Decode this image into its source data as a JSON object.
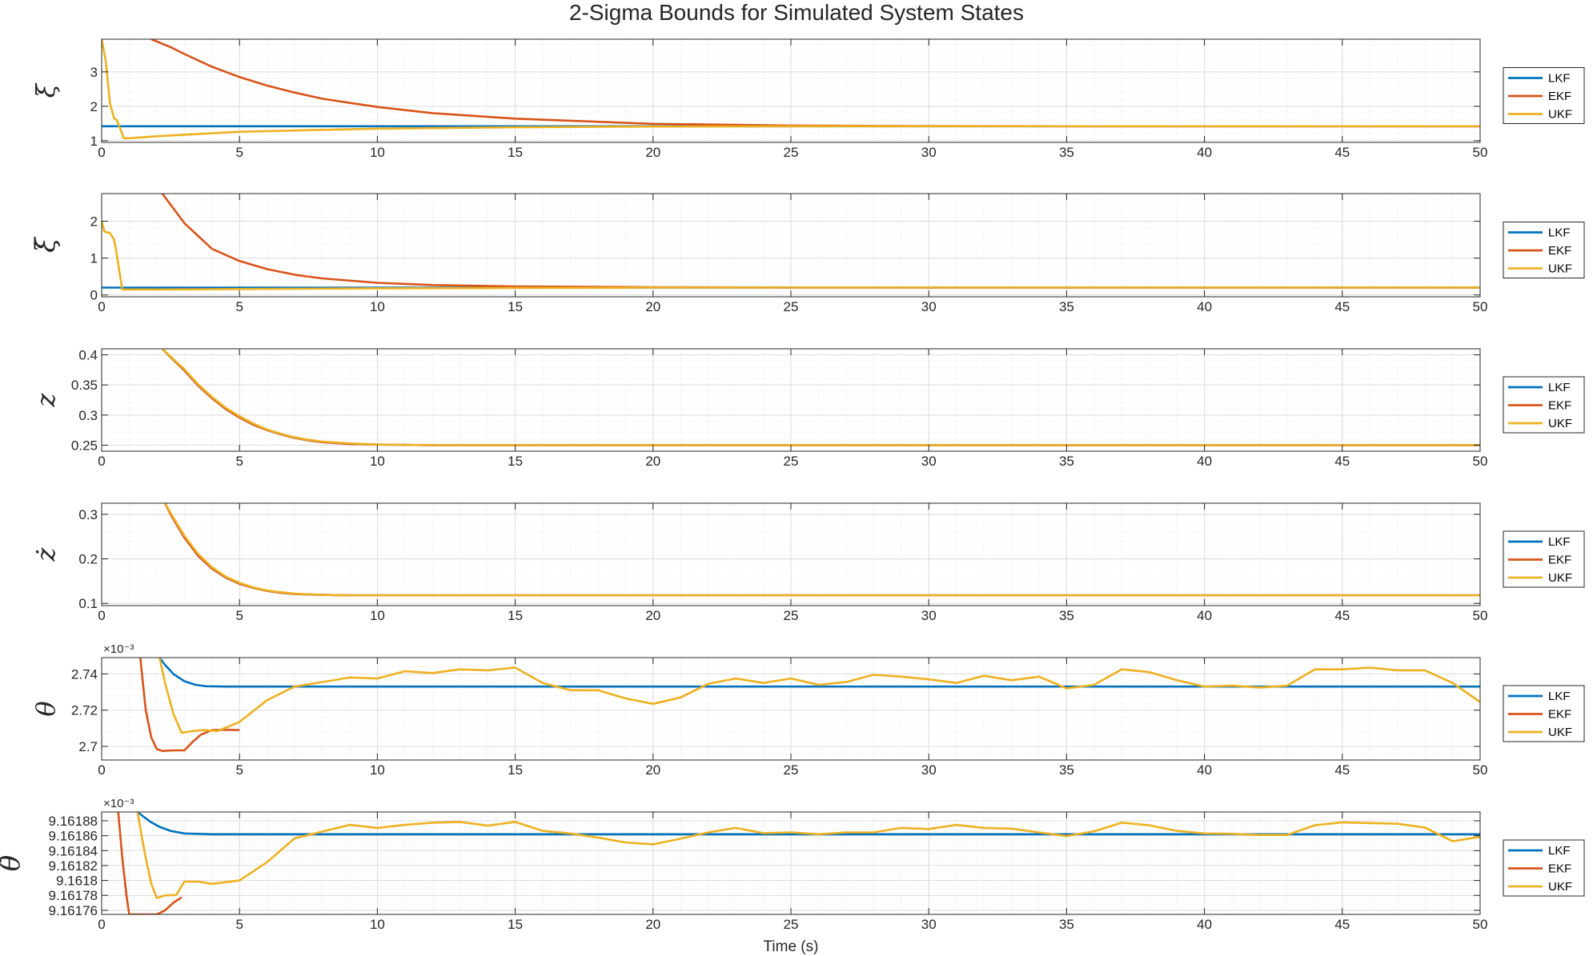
{
  "chart_data": {
    "type": "line",
    "title": "2-Sigma Bounds for Simulated System States",
    "xlabel": "Time (s)",
    "xlim": [
      0,
      50
    ],
    "xticks": [
      0,
      5,
      10,
      15,
      20,
      25,
      30,
      35,
      40,
      45,
      50
    ],
    "grid": true,
    "minor_grid": true,
    "legend": {
      "position": "right",
      "entries": [
        "LKF",
        "EKF",
        "UKF"
      ]
    },
    "colors": {
      "LKF": "#0072BD",
      "EKF": "#D95319",
      "UKF": "#EDB120"
    },
    "panels": [
      {
        "ylabel": "ξ",
        "ylim": [
          0.95,
          3.95
        ],
        "yticks": [
          1,
          2,
          3
        ],
        "ytick_labels": [
          "1",
          "2",
          "3"
        ],
        "exponent": "",
        "series": [
          {
            "name": "LKF",
            "x": [
              0,
              1,
              2,
              5,
              10,
              20,
              30,
              40,
              50
            ],
            "y": [
              1.42,
              1.42,
              1.42,
              1.42,
              1.42,
              1.42,
              1.42,
              1.42,
              1.42
            ]
          },
          {
            "name": "EKF",
            "x": [
              1.8,
              2.5,
              3,
              4,
              5,
              6,
              7,
              8,
              10,
              12,
              15,
              20,
              25,
              30,
              35,
              40,
              50
            ],
            "y": [
              3.95,
              3.72,
              3.52,
              3.15,
              2.85,
              2.6,
              2.4,
              2.22,
              1.98,
              1.8,
              1.64,
              1.49,
              1.44,
              1.425,
              1.42,
              1.42,
              1.42
            ]
          },
          {
            "name": "UKF",
            "x": [
              0,
              0.15,
              0.3,
              0.45,
              0.55,
              0.65,
              0.8,
              1,
              2,
              5,
              10,
              15,
              20,
              25,
              30,
              40,
              50
            ],
            "y": [
              3.95,
              3.3,
              2.1,
              1.65,
              1.6,
              1.4,
              1.07,
              1.07,
              1.13,
              1.26,
              1.35,
              1.39,
              1.41,
              1.42,
              1.42,
              1.42,
              1.42
            ]
          }
        ]
      },
      {
        "ylabel": "ξ̇",
        "ylim": [
          -0.05,
          2.75
        ],
        "yticks": [
          0,
          1,
          2
        ],
        "ytick_labels": [
          "0",
          "1",
          "2"
        ],
        "exponent": "",
        "series": [
          {
            "name": "LKF",
            "x": [
              0,
              1,
              2,
              5,
              10,
              20,
              30,
              40,
              50
            ],
            "y": [
              0.2,
              0.2,
              0.2,
              0.2,
              0.2,
              0.2,
              0.2,
              0.2,
              0.2
            ]
          },
          {
            "name": "EKF",
            "x": [
              2.2,
              3,
              4,
              5,
              6,
              7,
              8,
              10,
              12,
              15,
              20,
              25,
              50
            ],
            "y": [
              2.75,
              1.95,
              1.25,
              0.92,
              0.7,
              0.55,
              0.45,
              0.33,
              0.27,
              0.23,
              0.21,
              0.2,
              0.2
            ]
          },
          {
            "name": "UKF",
            "x": [
              0,
              0.1,
              0.3,
              0.45,
              0.55,
              0.65,
              0.75,
              1,
              2,
              5,
              10,
              20,
              50
            ],
            "y": [
              2.0,
              1.72,
              1.68,
              1.5,
              1.1,
              0.6,
              0.15,
              0.15,
              0.15,
              0.16,
              0.18,
              0.2,
              0.2
            ]
          }
        ]
      },
      {
        "ylabel": "z",
        "ylim": [
          0.24,
          0.41
        ],
        "yticks": [
          0.25,
          0.3,
          0.35,
          0.4
        ],
        "ytick_labels": [
          "0.25",
          "0.3",
          "0.35",
          "0.4"
        ],
        "exponent": "",
        "series": [
          {
            "name": "LKF",
            "x": [
              2.2,
              2.5,
              3,
              3.5,
              4,
              4.5,
              5,
              5.5,
              6,
              6.5,
              7,
              7.5,
              8,
              9,
              10,
              12,
              15,
              20,
              30,
              40,
              50
            ],
            "y": [
              0.41,
              0.396,
              0.374,
              0.349,
              0.328,
              0.31,
              0.296,
              0.284,
              0.275,
              0.268,
              0.262,
              0.258,
              0.255,
              0.252,
              0.251,
              0.25,
              0.25,
              0.25,
              0.25,
              0.25,
              0.25
            ]
          },
          {
            "name": "EKF",
            "x": [
              2.2,
              2.5,
              3,
              3.5,
              4,
              4.5,
              5,
              5.5,
              6,
              6.5,
              7,
              7.5,
              8,
              9,
              10,
              12,
              15,
              20,
              30,
              40,
              50
            ],
            "y": [
              0.41,
              0.396,
              0.374,
              0.349,
              0.328,
              0.31,
              0.296,
              0.284,
              0.275,
              0.268,
              0.262,
              0.258,
              0.255,
              0.252,
              0.251,
              0.25,
              0.25,
              0.25,
              0.25,
              0.25,
              0.25
            ]
          },
          {
            "name": "UKF",
            "x": [
              2.2,
              2.5,
              3,
              3.5,
              4,
              4.5,
              5,
              5.5,
              6,
              6.5,
              7,
              7.5,
              8,
              9,
              10,
              12,
              15,
              20,
              30,
              40,
              50
            ],
            "y": [
              0.41,
              0.397,
              0.376,
              0.351,
              0.33,
              0.312,
              0.298,
              0.286,
              0.276,
              0.269,
              0.263,
              0.259,
              0.256,
              0.253,
              0.251,
              0.25,
              0.25,
              0.25,
              0.25,
              0.25,
              0.25
            ]
          }
        ]
      },
      {
        "ylabel": "ż",
        "ylim": [
          0.095,
          0.325
        ],
        "yticks": [
          0.1,
          0.2,
          0.3
        ],
        "ytick_labels": [
          "0.1",
          "0.2",
          "0.3"
        ],
        "exponent": "",
        "series": [
          {
            "name": "LKF",
            "x": [
              2.3,
              2.5,
              3,
              3.5,
              4,
              4.5,
              5,
              5.5,
              6,
              6.5,
              7,
              8,
              9,
              10,
              15,
              20,
              30,
              40,
              50
            ],
            "y": [
              0.325,
              0.3,
              0.248,
              0.207,
              0.178,
              0.158,
              0.144,
              0.135,
              0.128,
              0.124,
              0.121,
              0.119,
              0.118,
              0.118,
              0.118,
              0.118,
              0.118,
              0.118,
              0.118
            ]
          },
          {
            "name": "EKF",
            "x": [
              2.3,
              2.5,
              3,
              3.5,
              4,
              4.5,
              5,
              5.5,
              6,
              6.5,
              7,
              8,
              9,
              10,
              15,
              20,
              30,
              40,
              50
            ],
            "y": [
              0.325,
              0.3,
              0.248,
              0.207,
              0.178,
              0.158,
              0.144,
              0.135,
              0.128,
              0.124,
              0.121,
              0.119,
              0.118,
              0.118,
              0.118,
              0.118,
              0.118,
              0.118,
              0.118
            ]
          },
          {
            "name": "UKF",
            "x": [
              2.3,
              2.5,
              3,
              3.5,
              4,
              4.5,
              5,
              5.5,
              6,
              6.5,
              7,
              8,
              9,
              10,
              15,
              20,
              30,
              40,
              50
            ],
            "y": [
              0.325,
              0.303,
              0.252,
              0.211,
              0.181,
              0.16,
              0.146,
              0.136,
              0.129,
              0.125,
              0.122,
              0.119,
              0.118,
              0.118,
              0.118,
              0.118,
              0.118,
              0.118,
              0.118
            ]
          }
        ]
      },
      {
        "ylabel": "θ",
        "ylim": [
          0.0026925,
          0.002749
        ],
        "yticks": [
          0.0027,
          0.00272,
          0.00274
        ],
        "ytick_labels": [
          "2.7",
          "2.72",
          "2.74"
        ],
        "exponent": "×10⁻³",
        "series": [
          {
            "name": "LKF",
            "x": [
              2.1,
              2.3,
              2.6,
              3,
              3.4,
              3.8,
              4.5,
              5,
              10,
              20,
              30,
              40,
              50
            ],
            "y": [
              0.002749,
              0.002745,
              0.00274,
              0.002736,
              0.002734,
              0.0027332,
              0.002733,
              0.002733,
              0.002733,
              0.002733,
              0.002733,
              0.002733,
              0.002733
            ]
          },
          {
            "name": "EKF",
            "x": [
              1.4,
              1.6,
              1.8,
              2,
              2.2,
              2.6,
              3,
              3.3,
              3.6,
              4,
              4.5,
              5
            ],
            "y": [
              0.002749,
              0.00272,
              0.002705,
              0.0026985,
              0.0026975,
              0.0026978,
              0.0026978,
              0.0027025,
              0.0027065,
              0.002709,
              0.0027092,
              0.002709
            ]
          },
          {
            "name": "UKF",
            "x": [
              2.1,
              2.3,
              2.6,
              2.9,
              3.3,
              3.7,
              4.2,
              5,
              6,
              7,
              8,
              9,
              10,
              11,
              12,
              13,
              14,
              15,
              16,
              17,
              18,
              19,
              20,
              21,
              22,
              23,
              24,
              25,
              26,
              27,
              28,
              29,
              30,
              31,
              32,
              33,
              34,
              35,
              36,
              37,
              38,
              39,
              40,
              41,
              42,
              43,
              44,
              45,
              46,
              47,
              48,
              49,
              50
            ],
            "y": [
              0.002749,
              0.002735,
              0.002718,
              0.0027075,
              0.0027085,
              0.002709,
              0.0027085,
              0.0027135,
              0.0027255,
              0.002733,
              0.0027355,
              0.002738,
              0.0027375,
              0.0027415,
              0.0027405,
              0.0027425,
              0.002742,
              0.0027435,
              0.002735,
              0.002731,
              0.002731,
              0.0027265,
              0.0027235,
              0.002727,
              0.0027345,
              0.0027375,
              0.002735,
              0.0027375,
              0.002734,
              0.0027355,
              0.0027395,
              0.0027385,
              0.002737,
              0.002735,
              0.002739,
              0.0027365,
              0.0027385,
              0.002732,
              0.002734,
              0.0027425,
              0.002741,
              0.0027365,
              0.002733,
              0.0027335,
              0.0027325,
              0.0027335,
              0.0027425,
              0.0027425,
              0.0027435,
              0.002742,
              0.002742,
              0.002735,
              0.0027245
            ]
          }
        ]
      },
      {
        "ylabel": "θ̇",
        "ylim": [
          0.0091617545,
          0.0091618918
        ],
        "yticks": [
          0.00916176,
          0.00916178,
          0.0091618,
          0.00916182,
          0.00916184,
          0.00916186,
          0.00916188
        ],
        "ytick_labels": [
          "9.16176",
          "9.16178",
          "9.1618",
          "9.16182",
          "9.16184",
          "9.16186",
          "9.16188"
        ],
        "exponent": "×10⁻³",
        "series": [
          {
            "name": "LKF",
            "x": [
              1.3,
              1.5,
              1.8,
              2.1,
              2.5,
              3,
              4,
              5,
              10,
              20,
              30,
              40,
              50
            ],
            "y": [
              0.0091618918,
              0.009161886,
              0.009161878,
              0.009161872,
              0.0091618665,
              0.009161863,
              0.009161862,
              0.009161862,
              0.009161862,
              0.009161862,
              0.009161862,
              0.009161862,
              0.009161862
            ]
          },
          {
            "name": "EKF",
            "x": [
              0.6,
              0.75,
              0.9,
              1,
              2,
              2.3,
              2.6,
              2.9
            ],
            "y": [
              0.0091618918,
              0.00916183,
              0.00916178,
              0.0091617545,
              0.0091617545,
              0.00916176,
              0.00916177,
              0.0091617775
            ]
          },
          {
            "name": "UKF",
            "x": [
              1.3,
              1.45,
              1.6,
              1.8,
              2,
              2.3,
              2.7,
              3,
              3.5,
              4,
              5,
              6,
              7,
              8,
              9,
              10,
              11,
              12,
              13,
              14,
              15,
              16,
              17,
              18,
              19,
              20,
              21,
              22,
              23,
              24,
              25,
              26,
              27,
              28,
              29,
              30,
              31,
              32,
              33,
              34,
              35,
              36,
              37,
              38,
              39,
              40,
              41,
              42,
              43,
              44,
              45,
              46,
              47,
              48,
              49,
              50
            ],
            "y": [
              0.0091618918,
              0.00916186,
              0.00916183,
              0.0091617955,
              0.0091617765,
              0.00916178,
              0.0091617805,
              0.0091617985,
              0.0091617985,
              0.0091617955,
              0.0091618,
              0.0091618245,
              0.0091618565,
              0.0091618655,
              0.0091618745,
              0.0091618705,
              0.0091618745,
              0.0091618775,
              0.0091618785,
              0.0091618735,
              0.0091618785,
              0.0091618665,
              0.009161863,
              0.0091618575,
              0.009161851,
              0.0091618485,
              0.009161856,
              0.0091618645,
              0.0091618705,
              0.0091618635,
              0.0091618645,
              0.009161862,
              0.0091618645,
              0.0091618645,
              0.0091618705,
              0.009161869,
              0.0091618745,
              0.0091618705,
              0.0091618695,
              0.0091618645,
              0.0091618595,
              0.009161866,
              0.0091618775,
              0.009161874,
              0.0091618665,
              0.009161863,
              0.0091618625,
              0.009161861,
              0.009161861,
              0.009161874,
              0.009161878,
              0.009161877,
              0.009161876,
              0.009161871,
              0.0091618525,
              0.0091618585
            ]
          }
        ]
      }
    ]
  }
}
